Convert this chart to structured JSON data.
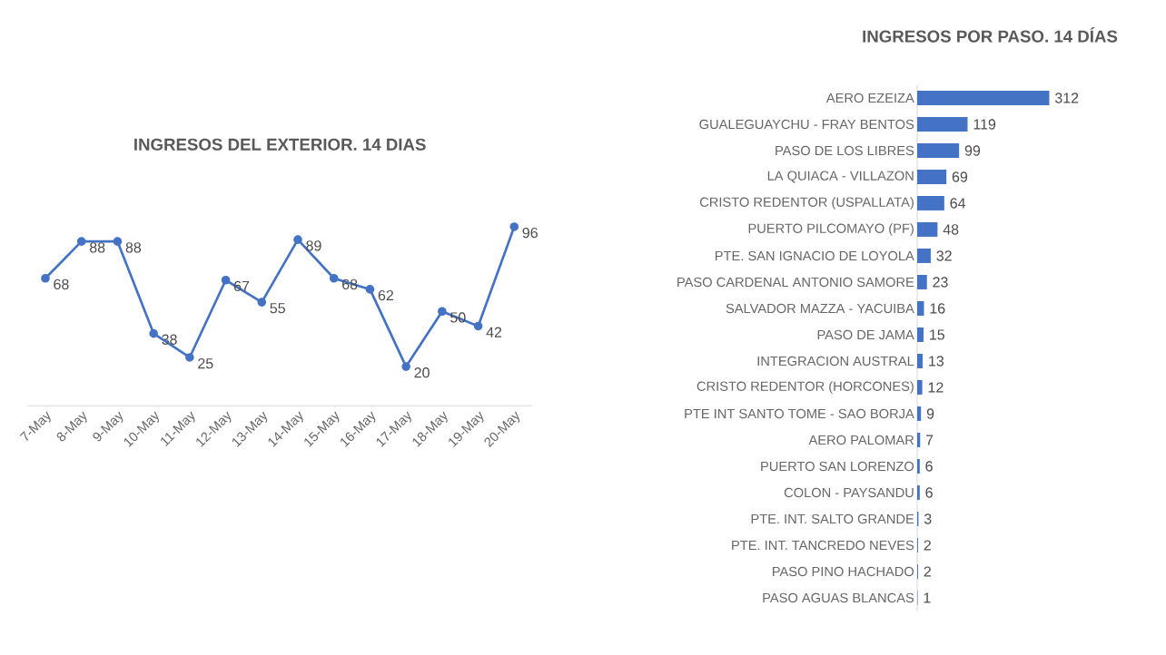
{
  "chart_data": [
    {
      "type": "line",
      "title": "INGRESOS DEL EXTERIOR. 14 DIAS",
      "categories": [
        "7-May",
        "8-May",
        "9-May",
        "10-May",
        "11-May",
        "12-May",
        "13-May",
        "14-May",
        "15-May",
        "16-May",
        "17-May",
        "18-May",
        "19-May",
        "20-May"
      ],
      "values": [
        68,
        88,
        88,
        38,
        25,
        67,
        55,
        89,
        68,
        62,
        20,
        50,
        42,
        96
      ],
      "color": "#4472c4",
      "marker": "circle",
      "data_labels": true,
      "tick_labels": "x"
    },
    {
      "type": "bar",
      "orientation": "horizontal",
      "title": "INGRESOS POR PASO. 14 DÍAS",
      "categories": [
        "AERO EZEIZA",
        "GUALEGUAYCHU - FRAY BENTOS",
        "PASO DE LOS LIBRES",
        "LA QUIACA - VILLAZON",
        "CRISTO REDENTOR (USPALLATA)",
        "PUERTO PILCOMAYO (PF)",
        "PTE. SAN IGNACIO DE LOYOLA",
        "PASO CARDENAL ANTONIO SAMORE",
        "SALVADOR MAZZA - YACUIBA",
        "PASO DE JAMA",
        "INTEGRACION AUSTRAL",
        "CRISTO REDENTOR (HORCONES)",
        "PTE INT SANTO TOME - SAO BORJA",
        "AERO PALOMAR",
        "PUERTO SAN LORENZO",
        "COLON - PAYSANDU",
        "PTE. INT. SALTO GRANDE",
        "PTE. INT. TANCREDO NEVES",
        "PASO PINO HACHADO",
        "PASO AGUAS BLANCAS"
      ],
      "values": [
        312,
        119,
        99,
        69,
        64,
        48,
        32,
        23,
        16,
        15,
        13,
        12,
        9,
        7,
        6,
        6,
        3,
        2,
        2,
        1
      ],
      "color": "#4472c4",
      "data_labels": true,
      "tick_labels": "y"
    }
  ]
}
